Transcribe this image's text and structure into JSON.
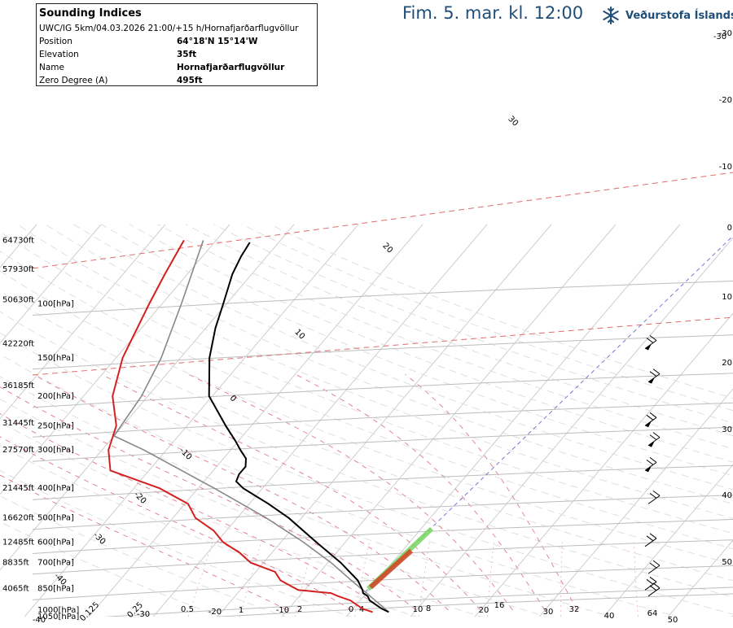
{
  "header": {
    "title": "Fim. 5. mar. kl. 12:00",
    "brand": "Veðurstofa Íslands",
    "brand_icon": "snowflake-icon",
    "brand_color": "#1f4e79"
  },
  "info_box": {
    "title": "Sounding Indices",
    "subtitle": "UWC/IG 5km/04.03.2026 21:00/+15 h/Hornafjarðarflugvöllur",
    "rows": [
      {
        "label": "Position",
        "value": "64°18'N 15°14'W"
      },
      {
        "label": "Elevation",
        "value": "35ft"
      },
      {
        "label": "Name",
        "value": "Hornafjarðarflugvöllur"
      },
      {
        "label": "Zero Degree (A)",
        "value": "495ft"
      }
    ]
  },
  "chart_data": {
    "type": "line",
    "colors": {
      "temperature": "#000000",
      "dewpoint": "#d42020",
      "parcel": "#888888",
      "wind_barbs": "#000000"
    },
    "pressure_levels": [
      {
        "label": "1000[hPa]",
        "p": 1000
      },
      {
        "label": "1050[hPa]",
        "p": 1050
      },
      {
        "label": "850[hPa]",
        "p": 850
      },
      {
        "label": "700[hPa]",
        "p": 700
      },
      {
        "label": "600[hPa]",
        "p": 600
      },
      {
        "label": "500[hPa]",
        "p": 500
      },
      {
        "label": "400[hPa]",
        "p": 400
      },
      {
        "label": "300[hPa]",
        "p": 300
      },
      {
        "label": "250[hPa]",
        "p": 250
      },
      {
        "label": "200[hPa]",
        "p": 200
      },
      {
        "label": "150[hPa]",
        "p": 150
      },
      {
        "label": "100[hPa]",
        "p": 100
      }
    ],
    "height_labels": [
      {
        "label": "64730ft",
        "p": 62
      },
      {
        "label": "57930ft",
        "p": 77
      },
      {
        "label": "50630ft",
        "p": 97
      },
      {
        "label": "42220ft",
        "p": 135
      },
      {
        "label": "36185ft",
        "p": 185
      },
      {
        "label": "31445ft",
        "p": 245
      },
      {
        "label": "27570ft",
        "p": 300
      },
      {
        "label": "21445ft",
        "p": 400
      },
      {
        "label": "16620ft",
        "p": 500
      },
      {
        "label": "12485ft",
        "p": 600
      },
      {
        "label": "8835ft",
        "p": 700
      },
      {
        "label": "4065ft",
        "p": 850
      }
    ],
    "isotherm_labels_top": [
      "-30"
    ],
    "right_temperature_labels": [
      "-30",
      "-20",
      "-10",
      "0",
      "10",
      "20",
      "30",
      "40",
      "50"
    ],
    "bottom_labels": [
      "-40",
      "0.125",
      "-30",
      "0.25",
      "0.5",
      "-20",
      "1",
      "-10",
      "2",
      "0",
      "4",
      "10",
      "8",
      "20",
      "16",
      "30",
      "32",
      "40",
      "64",
      "50"
    ],
    "inner_labels": [
      "30",
      "20",
      "10",
      "0",
      "-10",
      "-20",
      "-30",
      "-40"
    ],
    "temperature": [
      {
        "p": 1015,
        "t": 6.0
      },
      {
        "p": 990,
        "t": 4.5
      },
      {
        "p": 960,
        "t": 3.0
      },
      {
        "p": 930,
        "t": 1.5
      },
      {
        "p": 900,
        "t": 0.6
      },
      {
        "p": 880,
        "t": -0.5
      },
      {
        "p": 860,
        "t": -1.0
      },
      {
        "p": 800,
        "t": -3.0
      },
      {
        "p": 700,
        "t": -8.0
      },
      {
        "p": 600,
        "t": -14.5
      },
      {
        "p": 500,
        "t": -22.0
      },
      {
        "p": 450,
        "t": -27.0
      },
      {
        "p": 400,
        "t": -33.0
      },
      {
        "p": 380,
        "t": -35.0
      },
      {
        "p": 360,
        "t": -35.5
      },
      {
        "p": 340,
        "t": -35.5
      },
      {
        "p": 320,
        "t": -36.5
      },
      {
        "p": 300,
        "t": -38.5
      },
      {
        "p": 280,
        "t": -40.5
      },
      {
        "p": 250,
        "t": -44.0
      },
      {
        "p": 200,
        "t": -50.5
      },
      {
        "p": 150,
        "t": -55.5
      },
      {
        "p": 120,
        "t": -58.5
      },
      {
        "p": 100,
        "t": -60.5
      },
      {
        "p": 80,
        "t": -63.0
      },
      {
        "p": 70,
        "t": -64.0
      },
      {
        "p": 63,
        "t": -64.5
      }
    ],
    "dewpoint": [
      {
        "p": 1015,
        "t": 3.5
      },
      {
        "p": 990,
        "t": 1.5
      },
      {
        "p": 960,
        "t": 0.0
      },
      {
        "p": 930,
        "t": -1.5
      },
      {
        "p": 900,
        "t": -4.0
      },
      {
        "p": 880,
        "t": -5.5
      },
      {
        "p": 860,
        "t": -11.0
      },
      {
        "p": 800,
        "t": -15.0
      },
      {
        "p": 750,
        "t": -17.0
      },
      {
        "p": 700,
        "t": -22.0
      },
      {
        "p": 650,
        "t": -25.0
      },
      {
        "p": 600,
        "t": -29.0
      },
      {
        "p": 550,
        "t": -32.0
      },
      {
        "p": 500,
        "t": -36.5
      },
      {
        "p": 450,
        "t": -39.5
      },
      {
        "p": 400,
        "t": -46.0
      },
      {
        "p": 350,
        "t": -56.0
      },
      {
        "p": 300,
        "t": -59.0
      },
      {
        "p": 250,
        "t": -61.0
      },
      {
        "p": 200,
        "t": -65.5
      },
      {
        "p": 150,
        "t": -69.0
      },
      {
        "p": 100,
        "t": -72.0
      },
      {
        "p": 80,
        "t": -73.5
      },
      {
        "p": 62,
        "t": -75.0
      }
    ],
    "parcel": [
      {
        "p": 1015,
        "t": 6.0
      },
      {
        "p": 900,
        "t": 1.0
      },
      {
        "p": 800,
        "t": -4.0
      },
      {
        "p": 700,
        "t": -9.5
      },
      {
        "p": 600,
        "t": -16.5
      },
      {
        "p": 500,
        "t": -25.5
      },
      {
        "p": 400,
        "t": -37.5
      },
      {
        "p": 300,
        "t": -53.5
      },
      {
        "p": 270,
        "t": -60.0
      },
      {
        "p": 200,
        "t": -61.0
      },
      {
        "p": 150,
        "t": -63.0
      },
      {
        "p": 100,
        "t": -67.0
      },
      {
        "p": 62,
        "t": -72.0
      }
    ],
    "wind_barb_levels": [
      140,
      180,
      250,
      290,
      350,
      450,
      620,
      760,
      860,
      900
    ]
  }
}
